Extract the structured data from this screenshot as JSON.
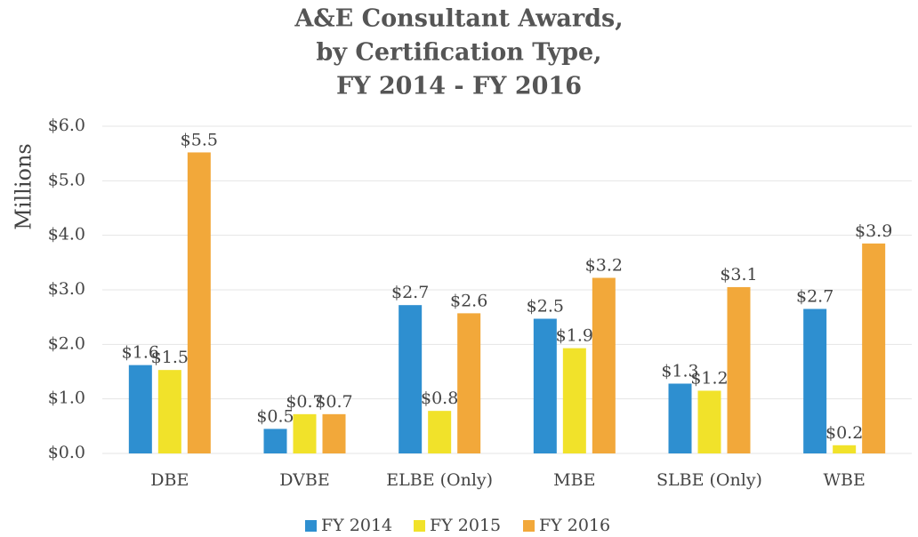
{
  "chart_data": {
    "type": "bar",
    "title": [
      "A&E Consultant Awards,",
      "by Certification Type,",
      "FY 2014 - FY 2016"
    ],
    "y_label": "Millions",
    "categories": [
      "DBE",
      "DVBE",
      "ELBE (Only)",
      "MBE",
      "SLBE (Only)",
      "WBE"
    ],
    "series": [
      {
        "name": "FY 2014",
        "color": "#2e8fd0",
        "values": [
          1.62,
          0.45,
          2.72,
          2.47,
          1.28,
          2.65
        ],
        "value_labels": [
          "$1.6",
          "$0.5",
          "$2.7",
          "$2.5",
          "$1.3",
          "$2.7"
        ]
      },
      {
        "name": "FY 2015",
        "color": "#f1e22a",
        "values": [
          1.53,
          0.72,
          0.78,
          1.93,
          1.15,
          0.15
        ],
        "value_labels": [
          "$1.5",
          "$0.7",
          "$0.8",
          "$1.9",
          "$1.2",
          "$0.2"
        ]
      },
      {
        "name": "FY 2016",
        "color": "#f2a83a",
        "values": [
          5.52,
          0.72,
          2.57,
          3.22,
          3.05,
          3.85
        ],
        "value_labels": [
          "$5.5",
          "$0.7",
          "$2.6",
          "$3.2",
          "$3.1",
          "$3.9"
        ]
      }
    ],
    "ylim": [
      0,
      6
    ],
    "yticks": [
      {
        "value": 0,
        "label": "$0.0"
      },
      {
        "value": 1,
        "label": "$1.0"
      },
      {
        "value": 2,
        "label": "$2.0"
      },
      {
        "value": 3,
        "label": "$3.0"
      },
      {
        "value": 4,
        "label": "$4.0"
      },
      {
        "value": 5,
        "label": "$5.0"
      },
      {
        "value": 6,
        "label": "$6.0"
      }
    ],
    "grid": true,
    "legend": "bottom"
  }
}
